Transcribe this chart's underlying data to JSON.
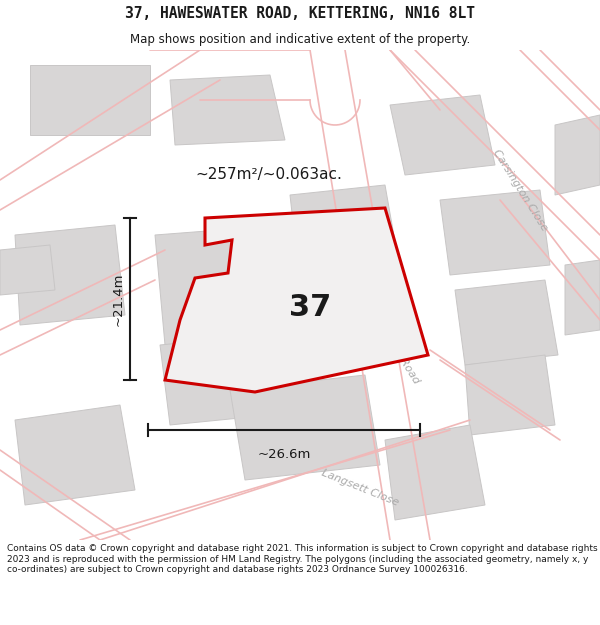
{
  "title_line1": "37, HAWESWATER ROAD, KETTERING, NN16 8LT",
  "title_line2": "Map shows position and indicative extent of the property.",
  "footer_text": "Contains OS data © Crown copyright and database right 2021. This information is subject to Crown copyright and database rights 2023 and is reproduced with the permission of HM Land Registry. The polygons (including the associated geometry, namely x, y co-ordinates) are subject to Crown copyright and database rights 2023 Ordnance Survey 100026316.",
  "area_label": "~257m²/~0.063ac.",
  "width_label": "~26.6m",
  "height_label": "~21.4m",
  "number_label": "37",
  "map_bg": "#f2f0f0",
  "road_pink": "#f0b8b8",
  "building_fill": "#d8d6d6",
  "building_edge": "#c8c6c6",
  "plot_color": "#cc0000",
  "plot_fill": "#f2f0f0",
  "text_dark": "#1a1a1a",
  "street_color": "#aaaaaa",
  "header_bg": "#ffffff",
  "footer_bg": "#ffffff",
  "dim_line_color": "#1a1a1a"
}
